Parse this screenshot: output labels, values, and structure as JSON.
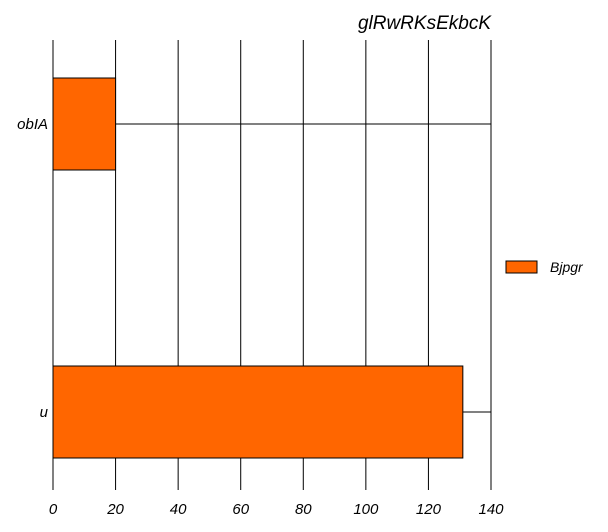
{
  "chart_data": {
    "type": "bar",
    "orientation": "horizontal",
    "title": "glRwRKsEkbcK",
    "xlabel": "",
    "ylabel": "",
    "categories": [
      "obIA",
      "u"
    ],
    "series": [
      {
        "name": "Bjpgr",
        "values": [
          20,
          131
        ],
        "color": "#ff6600"
      }
    ],
    "xlim": [
      0,
      140
    ],
    "x_ticks": [
      0,
      20,
      40,
      60,
      80,
      100,
      120,
      140
    ],
    "grid": true,
    "legend_position": "right"
  }
}
